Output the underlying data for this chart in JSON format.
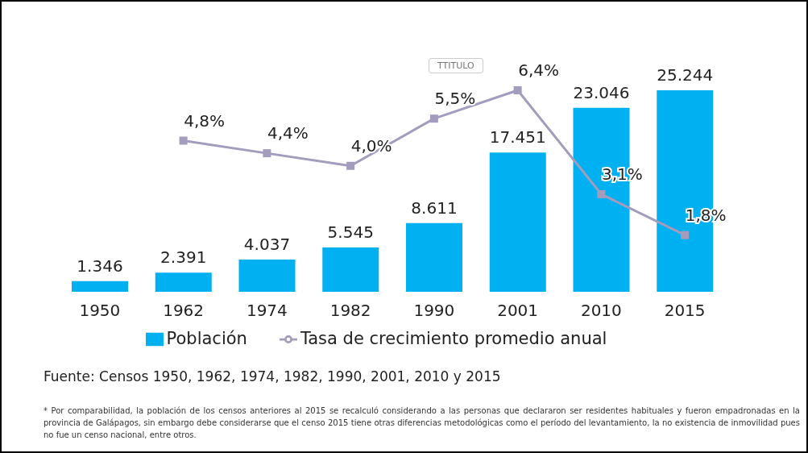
{
  "chart_data": {
    "type": "bar",
    "categories": [
      "1950",
      "1962",
      "1974",
      "1982",
      "1990",
      "2001",
      "2010",
      "2015"
    ],
    "series": [
      {
        "name": "Población",
        "color": "#00b0f0",
        "values": [
          1346,
          2391,
          4037,
          5545,
          8611,
          17451,
          23046,
          25244
        ],
        "value_labels": [
          "1.346",
          "2.391",
          "4.037",
          "5.545",
          "8.611",
          "17.451",
          "23.046",
          "25.244"
        ]
      },
      {
        "name": "Tasa de crecimiento promedio anual",
        "type": "line",
        "axis": "y2",
        "color": "#a39cbc",
        "marker": "square",
        "values": [
          null,
          4.8,
          4.4,
          4.0,
          5.5,
          6.4,
          3.1,
          1.8
        ],
        "value_labels": [
          null,
          "4,8%",
          "4,4%",
          "4,0%",
          "5,5%",
          "6,4%",
          "3,1%",
          "1,8%"
        ]
      }
    ],
    "legend": "bottom",
    "grid": false,
    "tick_labels": "x",
    "annotations": [
      "TTITULO",
      "Fuente: Censos 1950, 1962, 1974, 1982, 1990, 2001, 2010 y 2015",
      "* Por comparabilidad, la población de los censos anteriores al 2015 se recalculó considerando a las personas que declararon ser residentes habituales y fueron empadronadas en la provincia de Galápagos, sin embargo debe considerarse que el censo 2015 tiene otras diferencias metodológicas como el período del levantamiento, la no existencia de inmovilidad pues no fue un censo nacional, entre otros."
    ]
  }
}
